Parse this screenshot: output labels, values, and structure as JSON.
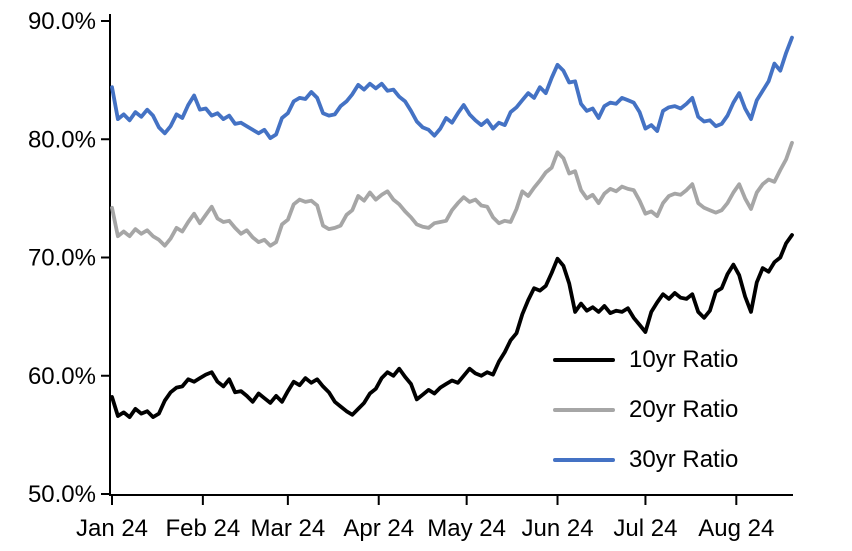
{
  "chart_data": {
    "type": "line",
    "title": "",
    "grid": false,
    "legend_position": "inside-lower-right",
    "x_axis": {
      "tick_labels": [
        "Jan 24",
        "Feb 24",
        "Mar 24",
        "Apr 24",
        "May 24",
        "Jun 24",
        "Jul 24",
        "Aug 24"
      ],
      "tick_day_offsets": [
        0,
        31,
        60,
        91,
        121,
        152,
        182,
        213
      ],
      "span_days": 232,
      "start_label": "Jan 24",
      "end_label": "Aug 24"
    },
    "y_axis": {
      "tick_labels": [
        "90.0%",
        "80.0%",
        "70.0%",
        "60.0%",
        "50.0%"
      ],
      "tick_values": [
        90,
        80,
        70,
        60,
        50
      ],
      "min": 50,
      "max": 90,
      "format": "percent_one_decimal"
    },
    "series": [
      {
        "name": "10yr Ratio",
        "color": "#000000",
        "values": [
          58.2,
          56.6,
          56.9,
          56.5,
          57.2,
          56.8,
          57.0,
          56.5,
          56.8,
          57.9,
          58.6,
          59.0,
          59.1,
          59.7,
          59.5,
          59.8,
          60.1,
          60.3,
          59.5,
          59.1,
          59.7,
          58.6,
          58.7,
          58.3,
          57.8,
          58.5,
          58.1,
          57.7,
          58.3,
          57.8,
          58.7,
          59.5,
          59.2,
          59.8,
          59.4,
          59.7,
          59.1,
          58.6,
          57.8,
          57.4,
          57.0,
          56.7,
          57.2,
          57.7,
          58.5,
          58.9,
          59.8,
          60.3,
          60.0,
          60.6,
          59.9,
          59.3,
          58.0,
          58.4,
          58.8,
          58.5,
          59.0,
          59.3,
          59.6,
          59.4,
          60.0,
          60.6,
          60.2,
          60.0,
          60.3,
          60.1,
          61.2,
          62.0,
          63.0,
          63.6,
          65.2,
          66.4,
          67.4,
          67.2,
          67.6,
          68.7,
          69.9,
          69.3,
          67.8,
          65.4,
          66.1,
          65.5,
          65.8,
          65.4,
          65.9,
          65.3,
          65.5,
          65.4,
          65.7,
          64.9,
          64.3,
          63.7,
          65.4,
          66.2,
          66.9,
          66.5,
          67.0,
          66.6,
          66.5,
          66.9,
          65.4,
          64.9,
          65.5,
          67.1,
          67.4,
          68.6,
          69.4,
          68.5,
          66.7,
          65.4,
          67.9,
          69.1,
          68.8,
          69.6,
          70.0,
          71.2,
          71.9
        ]
      },
      {
        "name": "20yr Ratio",
        "color": "#A6A6A6",
        "values": [
          74.2,
          71.8,
          72.2,
          71.8,
          72.4,
          72.0,
          72.3,
          71.8,
          71.5,
          71.0,
          71.6,
          72.5,
          72.2,
          73.0,
          73.7,
          72.9,
          73.6,
          74.3,
          73.3,
          73.0,
          73.1,
          72.5,
          72.0,
          72.3,
          71.7,
          71.3,
          71.5,
          71.0,
          71.3,
          72.8,
          73.2,
          74.5,
          74.9,
          74.7,
          74.8,
          74.4,
          72.7,
          72.4,
          72.5,
          72.7,
          73.6,
          74.0,
          75.2,
          74.8,
          75.5,
          74.9,
          75.3,
          75.6,
          74.9,
          74.5,
          73.9,
          73.4,
          72.8,
          72.6,
          72.5,
          72.9,
          73.0,
          73.1,
          74.0,
          74.6,
          75.1,
          74.7,
          74.9,
          74.4,
          74.3,
          73.4,
          72.9,
          73.1,
          73.0,
          74.1,
          75.6,
          75.2,
          75.9,
          76.5,
          77.2,
          77.6,
          78.9,
          78.4,
          77.1,
          77.3,
          75.7,
          75.0,
          75.3,
          74.6,
          75.4,
          75.8,
          75.6,
          76.0,
          75.8,
          75.7,
          74.8,
          73.7,
          73.9,
          73.5,
          74.6,
          75.2,
          75.4,
          75.3,
          75.7,
          76.2,
          74.6,
          74.2,
          74.0,
          73.8,
          74.0,
          74.6,
          75.5,
          76.2,
          75.0,
          74.1,
          75.5,
          76.2,
          76.6,
          76.4,
          77.4,
          78.3,
          79.7
        ]
      },
      {
        "name": "30yr Ratio",
        "color": "#4472C4",
        "values": [
          84.4,
          81.7,
          82.1,
          81.6,
          82.3,
          81.9,
          82.5,
          82.0,
          81.0,
          80.5,
          81.1,
          82.1,
          81.8,
          82.9,
          83.7,
          82.5,
          82.6,
          82.0,
          82.2,
          81.7,
          82.0,
          81.3,
          81.4,
          81.1,
          80.8,
          80.5,
          80.8,
          80.1,
          80.4,
          81.8,
          82.2,
          83.2,
          83.5,
          83.4,
          84.0,
          83.5,
          82.2,
          82.0,
          82.1,
          82.8,
          83.2,
          83.8,
          84.6,
          84.2,
          84.7,
          84.3,
          84.7,
          84.1,
          84.2,
          83.6,
          83.2,
          82.4,
          81.5,
          81.0,
          80.8,
          80.3,
          80.9,
          81.8,
          81.4,
          82.2,
          82.9,
          82.1,
          81.6,
          81.2,
          81.6,
          80.9,
          81.4,
          81.2,
          82.3,
          82.7,
          83.3,
          83.9,
          83.5,
          84.4,
          83.9,
          85.2,
          86.3,
          85.8,
          84.8,
          84.9,
          83.0,
          82.4,
          82.6,
          81.8,
          82.8,
          83.1,
          83.0,
          83.5,
          83.3,
          83.1,
          82.3,
          80.9,
          81.2,
          80.7,
          82.4,
          82.7,
          82.8,
          82.6,
          83.0,
          83.5,
          81.9,
          81.5,
          81.6,
          81.1,
          81.3,
          82.0,
          83.1,
          83.9,
          82.6,
          81.7,
          83.3,
          84.1,
          84.9,
          86.4,
          85.8,
          87.3,
          88.6
        ]
      }
    ]
  },
  "legend": {
    "items": [
      {
        "label": "10yr Ratio",
        "color": "#000000"
      },
      {
        "label": "20yr Ratio",
        "color": "#A6A6A6"
      },
      {
        "label": "30yr Ratio",
        "color": "#4472C4"
      }
    ]
  }
}
